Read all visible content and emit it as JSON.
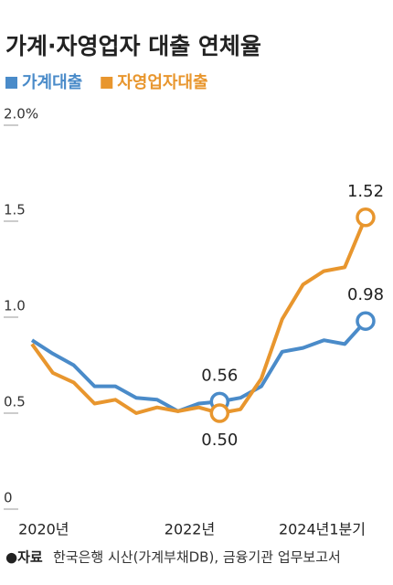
{
  "chart_data": {
    "type": "line",
    "title": "가계·자영업자 대출 연체율",
    "categories": [
      null,
      "2020년",
      null,
      null,
      null,
      null,
      null,
      null,
      "2022년",
      null,
      null,
      null,
      null,
      null,
      null,
      null,
      "2024년1분기"
    ],
    "series": [
      {
        "name": "가계대출",
        "color": "#4a8bc9",
        "values": [
          0.88,
          0.81,
          0.75,
          0.64,
          0.64,
          0.58,
          0.57,
          0.51,
          0.55,
          0.56,
          0.58,
          0.64,
          0.82,
          0.84,
          0.88,
          0.86,
          0.98
        ],
        "value_labels": [
          null,
          null,
          null,
          null,
          null,
          null,
          null,
          null,
          null,
          "0.56",
          null,
          null,
          null,
          null,
          null,
          null,
          "0.98"
        ]
      },
      {
        "name": "자영업자대출",
        "color": "#e8962e",
        "values": [
          0.86,
          0.71,
          0.66,
          0.55,
          0.57,
          0.5,
          0.53,
          0.51,
          0.53,
          0.5,
          0.52,
          0.68,
          0.99,
          1.17,
          1.24,
          1.26,
          1.52
        ],
        "value_labels": [
          null,
          null,
          null,
          null,
          null,
          null,
          null,
          null,
          null,
          "0.50",
          null,
          null,
          null,
          null,
          null,
          null,
          "1.52"
        ]
      }
    ],
    "ylim": [
      0,
      2
    ],
    "yticks": [
      0,
      0.5,
      {
        "value": 1,
        "label": "1.0"
      },
      1.5,
      {
        "value": 2,
        "label": "2.0%"
      }
    ],
    "source_label": "●자료",
    "source": "한국은행 시산(가계부채DB), 금융기관 업무보고서"
  }
}
